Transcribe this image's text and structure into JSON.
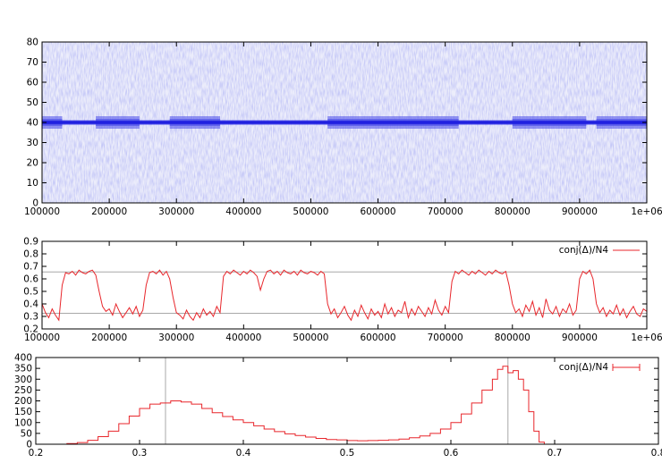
{
  "chart_data": [
    {
      "type": "heatmap",
      "xlim": [
        100000,
        1000000
      ],
      "ylim": [
        0,
        80
      ],
      "x_ticks": [
        100000,
        200000,
        300000,
        400000,
        500000,
        600000,
        700000,
        800000,
        900000,
        1000000
      ],
      "x_tick_labels": [
        "100000",
        "200000",
        "300000",
        "400000",
        "500000",
        "600000",
        "700000",
        "800000",
        "900000",
        "1e+06"
      ],
      "y_ticks": [
        0,
        10,
        20,
        30,
        40,
        50,
        60,
        70,
        80
      ],
      "y_tick_labels": [
        "0",
        "10",
        "20",
        "30",
        "40",
        "50",
        "60",
        "70",
        "80"
      ],
      "band_center": 40,
      "wide_band_intervals": [
        [
          100000,
          130000
        ],
        [
          180000,
          245000
        ],
        [
          290000,
          365000
        ],
        [
          525000,
          720000
        ],
        [
          800000,
          910000
        ],
        [
          925000,
          1000000
        ]
      ],
      "colors": {
        "background": "#ecedfb",
        "noise": "#b4b8ee",
        "band": "#2020e0",
        "band_halo": "#4a4cea"
      },
      "grid": false,
      "legend": "none"
    },
    {
      "type": "line",
      "xlim": [
        100000,
        1000000
      ],
      "ylim": [
        0.2,
        0.9
      ],
      "x_ticks": [
        100000,
        200000,
        300000,
        400000,
        500000,
        600000,
        700000,
        800000,
        900000,
        1000000
      ],
      "x_tick_labels": [
        "100000",
        "200000",
        "300000",
        "400000",
        "500000",
        "600000",
        "700000",
        "800000",
        "900000",
        "1e+06"
      ],
      "y_ticks": [
        0.2,
        0.3,
        0.4,
        0.5,
        0.6,
        0.7,
        0.8,
        0.9
      ],
      "y_tick_labels": [
        "0.2",
        "0.3",
        "0.4",
        "0.5",
        "0.6",
        "0.7",
        "0.8",
        "0.9"
      ],
      "reference_lines_y": [
        0.325,
        0.655
      ],
      "series": [
        {
          "name": "conj(Δ)/N4",
          "color": "#e8262b",
          "x": [
            100000,
            105000,
            110000,
            115000,
            120000,
            125000,
            130000,
            135000,
            140000,
            145000,
            150000,
            155000,
            160000,
            165000,
            170000,
            175000,
            180000,
            185000,
            190000,
            195000,
            200000,
            205000,
            210000,
            215000,
            220000,
            225000,
            230000,
            235000,
            240000,
            245000,
            250000,
            255000,
            260000,
            265000,
            270000,
            275000,
            280000,
            285000,
            290000,
            295000,
            300000,
            305000,
            310000,
            315000,
            320000,
            325000,
            330000,
            335000,
            340000,
            345000,
            350000,
            355000,
            360000,
            365000,
            370000,
            375000,
            380000,
            385000,
            390000,
            395000,
            400000,
            405000,
            410000,
            415000,
            420000,
            425000,
            430000,
            435000,
            440000,
            445000,
            450000,
            455000,
            460000,
            465000,
            470000,
            475000,
            480000,
            485000,
            490000,
            495000,
            500000,
            505000,
            510000,
            515000,
            520000,
            525000,
            530000,
            535000,
            540000,
            545000,
            550000,
            555000,
            560000,
            565000,
            570000,
            575000,
            580000,
            585000,
            590000,
            595000,
            600000,
            605000,
            610000,
            615000,
            620000,
            625000,
            630000,
            635000,
            640000,
            645000,
            650000,
            655000,
            660000,
            665000,
            670000,
            675000,
            680000,
            685000,
            690000,
            695000,
            700000,
            705000,
            710000,
            715000,
            720000,
            725000,
            730000,
            735000,
            740000,
            745000,
            750000,
            755000,
            760000,
            765000,
            770000,
            775000,
            780000,
            785000,
            790000,
            795000,
            800000,
            805000,
            810000,
            815000,
            820000,
            825000,
            830000,
            835000,
            840000,
            845000,
            850000,
            855000,
            860000,
            865000,
            870000,
            875000,
            880000,
            885000,
            890000,
            895000,
            900000,
            905000,
            910000,
            915000,
            920000,
            925000,
            930000,
            935000,
            940000,
            945000,
            950000,
            955000,
            960000,
            965000,
            970000,
            975000,
            980000,
            985000,
            990000,
            995000,
            1000000
          ],
          "y": [
            0.4,
            0.33,
            0.29,
            0.36,
            0.31,
            0.27,
            0.55,
            0.65,
            0.64,
            0.66,
            0.63,
            0.67,
            0.65,
            0.64,
            0.66,
            0.67,
            0.63,
            0.5,
            0.38,
            0.34,
            0.36,
            0.31,
            0.4,
            0.34,
            0.29,
            0.33,
            0.37,
            0.32,
            0.38,
            0.3,
            0.35,
            0.55,
            0.65,
            0.66,
            0.64,
            0.67,
            0.63,
            0.66,
            0.6,
            0.45,
            0.33,
            0.31,
            0.28,
            0.35,
            0.3,
            0.27,
            0.33,
            0.29,
            0.36,
            0.31,
            0.34,
            0.3,
            0.38,
            0.33,
            0.62,
            0.66,
            0.64,
            0.67,
            0.65,
            0.63,
            0.66,
            0.64,
            0.67,
            0.65,
            0.62,
            0.51,
            0.6,
            0.66,
            0.67,
            0.64,
            0.66,
            0.63,
            0.67,
            0.65,
            0.64,
            0.66,
            0.63,
            0.67,
            0.65,
            0.64,
            0.66,
            0.65,
            0.63,
            0.66,
            0.64,
            0.4,
            0.32,
            0.36,
            0.29,
            0.33,
            0.38,
            0.31,
            0.27,
            0.35,
            0.3,
            0.39,
            0.33,
            0.28,
            0.36,
            0.31,
            0.34,
            0.29,
            0.4,
            0.32,
            0.37,
            0.3,
            0.35,
            0.33,
            0.42,
            0.29,
            0.36,
            0.31,
            0.38,
            0.34,
            0.3,
            0.37,
            0.32,
            0.43,
            0.35,
            0.31,
            0.38,
            0.33,
            0.58,
            0.66,
            0.64,
            0.67,
            0.65,
            0.63,
            0.66,
            0.64,
            0.67,
            0.65,
            0.63,
            0.66,
            0.64,
            0.67,
            0.65,
            0.64,
            0.66,
            0.55,
            0.4,
            0.33,
            0.36,
            0.3,
            0.39,
            0.34,
            0.42,
            0.31,
            0.37,
            0.29,
            0.44,
            0.35,
            0.32,
            0.38,
            0.3,
            0.36,
            0.33,
            0.4,
            0.31,
            0.35,
            0.6,
            0.66,
            0.64,
            0.67,
            0.6,
            0.4,
            0.33,
            0.37,
            0.3,
            0.35,
            0.32,
            0.39,
            0.31,
            0.36,
            0.29,
            0.34,
            0.38,
            0.32,
            0.3,
            0.36,
            0.34
          ]
        }
      ],
      "legend": "top-right",
      "grid": false
    },
    {
      "type": "line",
      "xlim": [
        0.2,
        0.8
      ],
      "ylim": [
        0,
        400
      ],
      "x_ticks": [
        0.2,
        0.3,
        0.4,
        0.5,
        0.6,
        0.7,
        0.8
      ],
      "x_tick_labels": [
        "0.2",
        "0.3",
        "0.4",
        "0.5",
        "0.6",
        "0.7",
        "0.8"
      ],
      "y_ticks": [
        0,
        50,
        100,
        150,
        200,
        250,
        300,
        350,
        400
      ],
      "y_tick_labels": [
        "0",
        "50",
        "100",
        "150",
        "200",
        "250",
        "300",
        "350",
        "400"
      ],
      "reference_lines_x": [
        0.325,
        0.655
      ],
      "step": true,
      "series": [
        {
          "name": "conj(Δ)/N4",
          "color": "#e8262b",
          "x": [
            0.22,
            0.23,
            0.24,
            0.25,
            0.26,
            0.27,
            0.28,
            0.29,
            0.3,
            0.31,
            0.32,
            0.33,
            0.34,
            0.35,
            0.36,
            0.37,
            0.38,
            0.39,
            0.4,
            0.41,
            0.42,
            0.43,
            0.44,
            0.45,
            0.46,
            0.47,
            0.48,
            0.49,
            0.5,
            0.51,
            0.52,
            0.53,
            0.54,
            0.55,
            0.56,
            0.57,
            0.58,
            0.59,
            0.6,
            0.61,
            0.62,
            0.63,
            0.64,
            0.645,
            0.65,
            0.655,
            0.66,
            0.665,
            0.67,
            0.675,
            0.68,
            0.685,
            0.69
          ],
          "y": [
            0,
            3,
            8,
            18,
            35,
            60,
            95,
            130,
            165,
            185,
            190,
            200,
            195,
            185,
            165,
            145,
            128,
            112,
            100,
            85,
            70,
            58,
            48,
            40,
            33,
            27,
            22,
            20,
            17,
            16,
            17,
            18,
            20,
            24,
            30,
            38,
            50,
            70,
            100,
            140,
            190,
            250,
            300,
            345,
            360,
            330,
            340,
            300,
            250,
            150,
            60,
            10,
            0
          ]
        }
      ],
      "legend": "top-right",
      "grid": false
    }
  ]
}
